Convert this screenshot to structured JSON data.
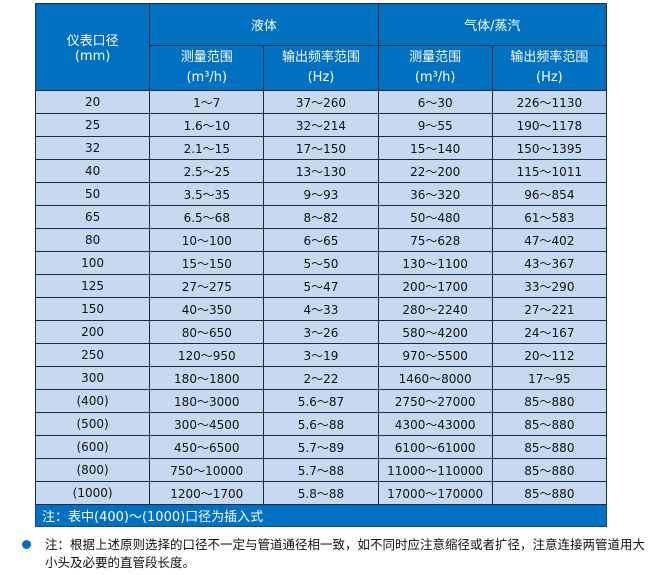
{
  "header": {
    "size_label": "仪表口径",
    "size_unit": "(mm)",
    "liquid": "液体",
    "gas": "气体/蒸汽",
    "range_label": "测量范围",
    "range_unit": "(m³/h)",
    "freq_label": "输出频率范围",
    "freq_unit": "(Hz)"
  },
  "rows": [
    [
      "20",
      "1～7",
      "37～260",
      "6～30",
      "226～1130"
    ],
    [
      "25",
      "1.6～10",
      "32～214",
      "9～55",
      "190～1178"
    ],
    [
      "32",
      "2.1～15",
      "17～150",
      "15～140",
      "150～1395"
    ],
    [
      "40",
      "2.5～25",
      "13～130",
      "22～200",
      "115～1011"
    ],
    [
      "50",
      "3.5～35",
      "9～93",
      "36～320",
      "96～854"
    ],
    [
      "65",
      "6.5～68",
      "8～82",
      "50～480",
      "61～583"
    ],
    [
      "80",
      "10～100",
      "6～65",
      "75～628",
      "47～402"
    ],
    [
      "100",
      "15～150",
      "5～50",
      "130～1100",
      "43～367"
    ],
    [
      "125",
      "27～275",
      "5～47",
      "200～1700",
      "33～290"
    ],
    [
      "150",
      "40～350",
      "4～33",
      "280～2240",
      "27～221"
    ],
    [
      "200",
      "80～650",
      "3～26",
      "580～4200",
      "24～167"
    ],
    [
      "250",
      "120～950",
      "3～19",
      "970～5500",
      "20～112"
    ],
    [
      "300",
      "180～1800",
      "2～22",
      "1460～8000",
      "17～95"
    ],
    [
      "(400)",
      "180～3000",
      "5.6～87",
      "2750～27000",
      "85～880"
    ],
    [
      "(500)",
      "300～4500",
      "5.6～88",
      "4300～43000",
      "85～880"
    ],
    [
      "(600)",
      "450～6500",
      "5.7～89",
      "6100～61000",
      "85～880"
    ],
    [
      "(800)",
      "750～10000",
      "5.7～88",
      "11000～110000",
      "85～880"
    ],
    [
      "(1000)",
      "1200～1700",
      "5.8～88",
      "17000～170000",
      "85～880"
    ]
  ],
  "table_note": "注：表中(400)～(1000)口径为插入式",
  "footnote": "注：根据上述原则选择的口径不一定与管道通径相一致，如不同时应注意缩径或者扩径，注意连接两管道用大小头及必要的直管段长度。",
  "colors": {
    "header": "#0070c0",
    "cell": "#c6d9f1"
  }
}
